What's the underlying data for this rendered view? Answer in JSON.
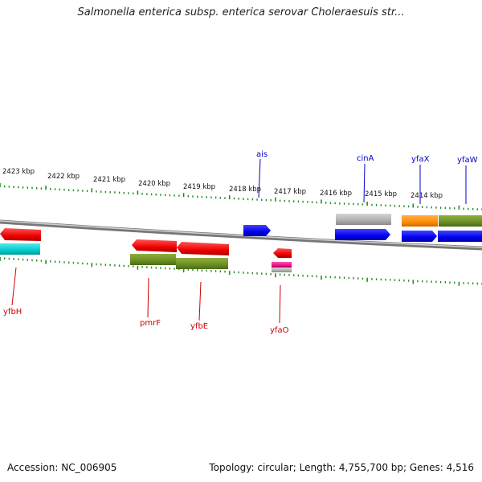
{
  "title": "Salmonella enterica subsp. enterica serovar Choleraesuis str...",
  "footer": {
    "accession": "Accession: NC_006905",
    "stats": "Topology: circular; Length: 4,755,700 bp; Genes: 4,516"
  },
  "ticks": [
    "2423 kbp",
    "2422 kbp",
    "2421 kbp",
    "2420 kbp",
    "2419 kbp",
    "2418 kbp",
    "2417 kbp",
    "2416 kbp",
    "2415 kbp",
    "2414 kbp"
  ],
  "gene_labels_top": [
    "ais",
    "cinA",
    "yfaX",
    "yfaW"
  ],
  "gene_labels_bottom": [
    "yfbH",
    "pmrF",
    "yfbE",
    "yfaO"
  ],
  "colors": {
    "forward_gene": "#0000ee",
    "reverse_gene": "#ee0000",
    "top_label": "#0000cc",
    "bottom_label": "#cc0000",
    "tick": "#228b22",
    "backbone": "#888888",
    "olive": "#6b8e23",
    "cyan": "#00cccc",
    "orange": "#ff8c00",
    "grey": "#b0b0b0",
    "magenta": "#ee1188"
  }
}
